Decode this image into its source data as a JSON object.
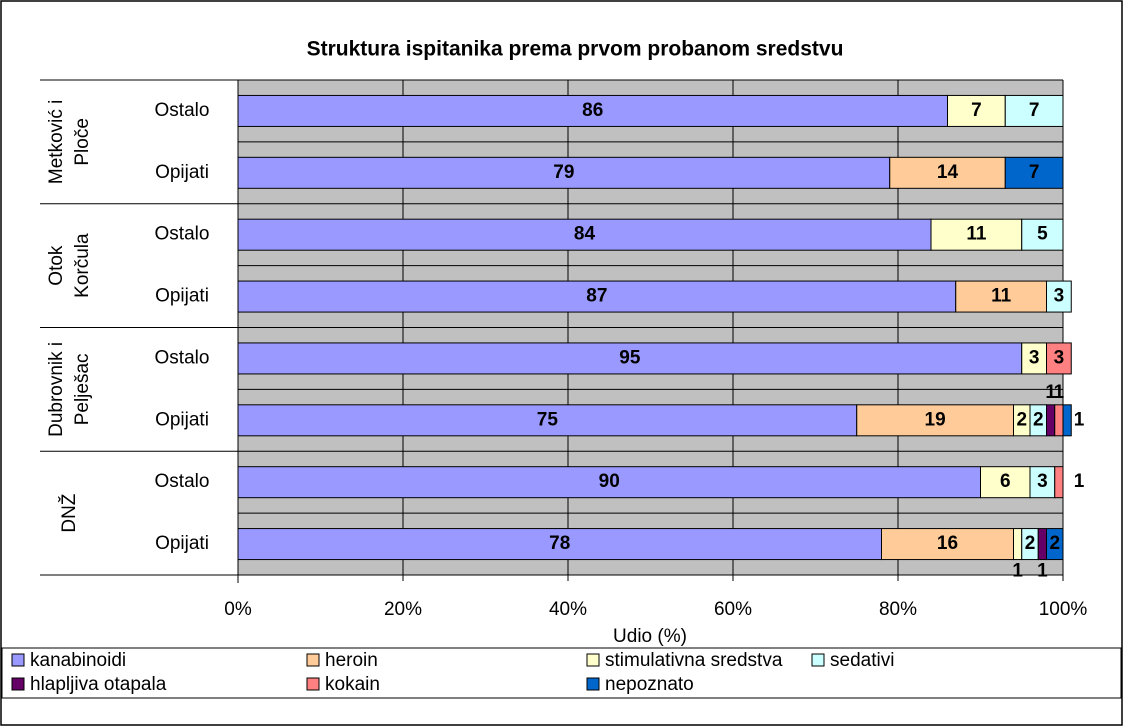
{
  "chart_data": {
    "type": "stacked_barh",
    "title": "Struktura ispitanika prema prvom probanom sredstvu",
    "x_label": "Udio (%)",
    "groups": [
      {
        "label": [
          "Metković i",
          "Ploče"
        ]
      },
      {
        "label": [
          "Otok",
          "Korčula"
        ]
      },
      {
        "label": [
          "Dubrovnik i",
          "Pelješac"
        ]
      },
      {
        "label": [
          "DNŽ"
        ]
      }
    ],
    "categories": [
      "Ostalo",
      "Opijati",
      "Ostalo",
      "Opijati",
      "Ostalo",
      "Opijati",
      "Ostalo",
      "Opijati"
    ],
    "series": [
      {
        "name": "kanabinoidi",
        "color": "#9999ff",
        "values": [
          86,
          79,
          84,
          87,
          95,
          75,
          90,
          78
        ]
      },
      {
        "name": "heroin",
        "color": "#ffcc99",
        "values": [
          0,
          14,
          0,
          11,
          0,
          19,
          0,
          16
        ]
      },
      {
        "name": "stimulativna sredstva",
        "color": "#ffffcc",
        "values": [
          7,
          0,
          11,
          0,
          3,
          2,
          6,
          1
        ]
      },
      {
        "name": "sedativi",
        "color": "#ccffff",
        "values": [
          7,
          0,
          5,
          3,
          0,
          2,
          3,
          2
        ]
      },
      {
        "name": "hlapljiva otapala",
        "color": "#660066",
        "values": [
          0,
          0,
          0,
          0,
          0,
          1,
          0,
          1
        ]
      },
      {
        "name": "kokain",
        "color": "#ff8080",
        "values": [
          0,
          0,
          0,
          0,
          3,
          1,
          1,
          0
        ]
      },
      {
        "name": "nepoznato",
        "color": "#0066cc",
        "values": [
          0,
          7,
          0,
          0,
          0,
          1,
          0,
          2
        ]
      }
    ],
    "xlim": [
      0,
      100
    ],
    "xticks": [
      {
        "value": 0,
        "label": "0%"
      },
      {
        "value": 20,
        "label": "20%"
      },
      {
        "value": 40,
        "label": "40%"
      },
      {
        "value": 60,
        "label": "60%"
      },
      {
        "value": 80,
        "label": "80%"
      },
      {
        "value": 100,
        "label": "100%"
      }
    ],
    "grid": true,
    "legend": "bottom"
  }
}
